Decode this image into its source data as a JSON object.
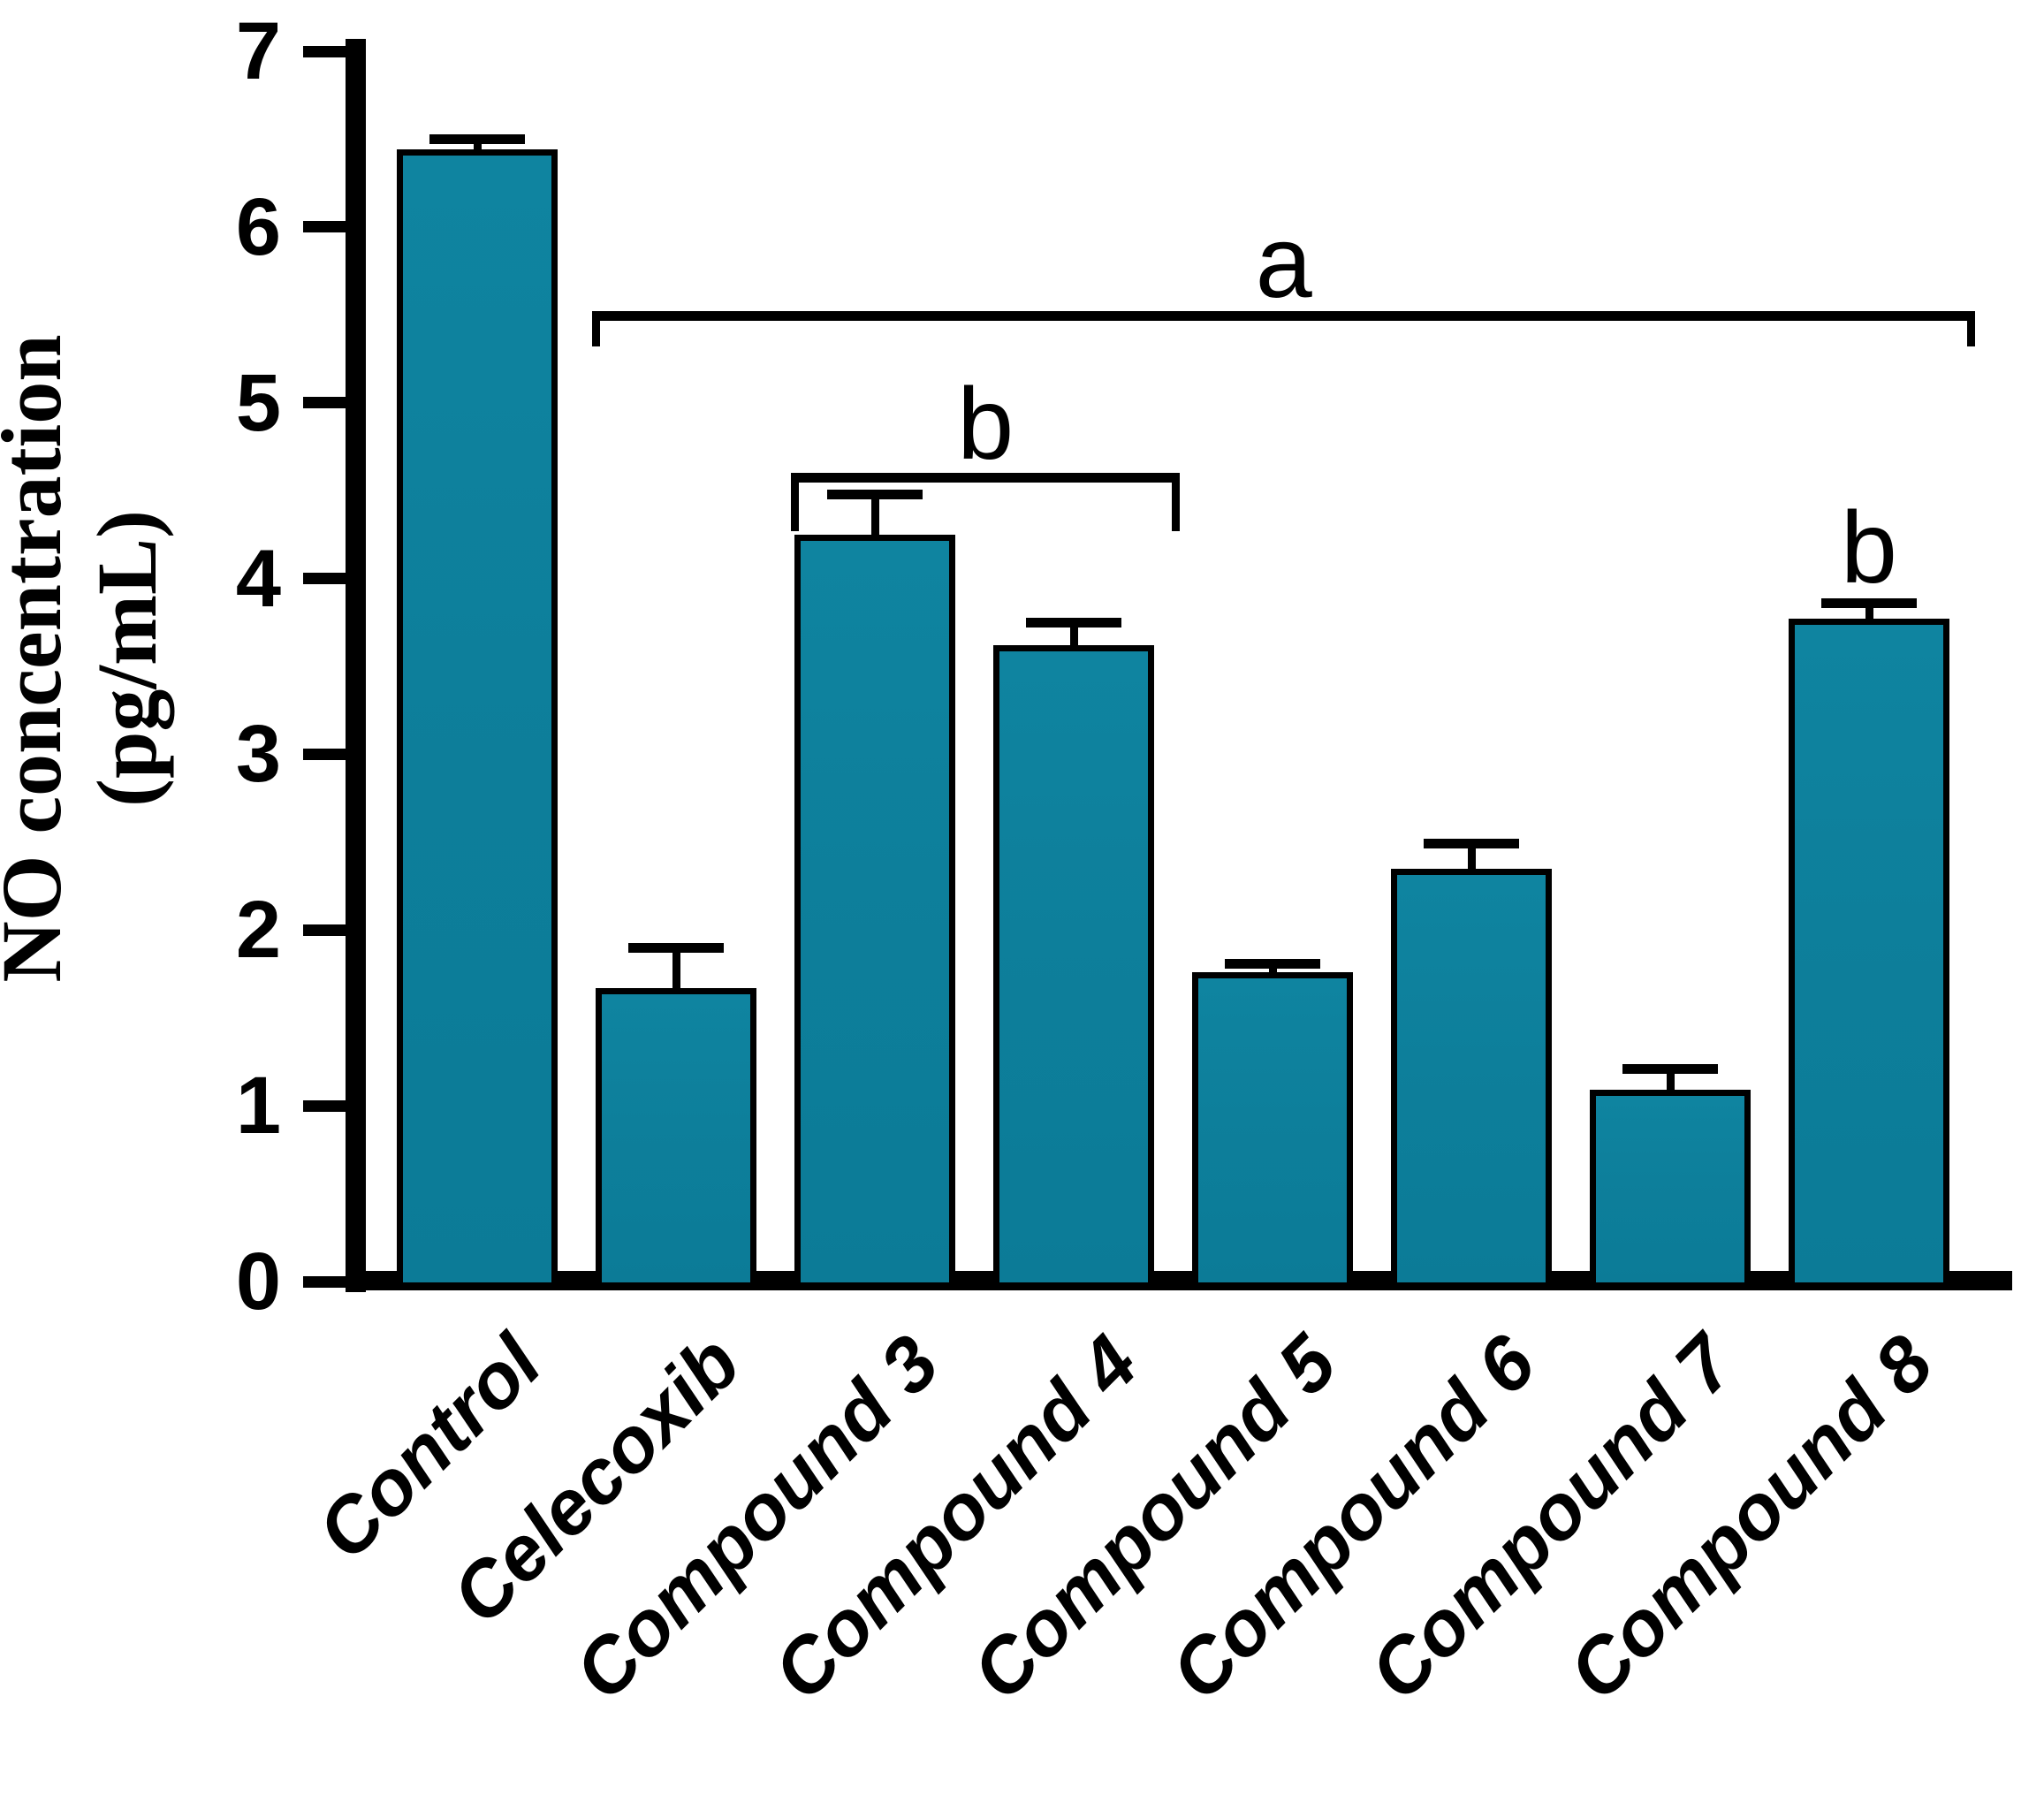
{
  "figure": {
    "background_color": "#ffffff",
    "bar_fill_color": "#0d7f9b",
    "axis_color": "#000000"
  },
  "chart_data": {
    "type": "bar",
    "title": "",
    "ylabel_line1": "NO concentration",
    "ylabel_line2": "(pg/mL)",
    "xlabel": "",
    "ylim": [
      0,
      7
    ],
    "ytick_labels": [
      "0",
      "1",
      "2",
      "3",
      "4",
      "5",
      "6",
      "7"
    ],
    "grid": false,
    "legend": "none",
    "categories": [
      "Control",
      "Celecoxib",
      "Compound 3",
      "Compound 4",
      "Compound 5",
      "Compound 6",
      "Compound 7",
      "Compound 8"
    ],
    "series": [
      {
        "name": "NO concentration (pg/mL)",
        "values": [
          6.44,
          1.67,
          4.25,
          3.62,
          1.76,
          2.35,
          1.09,
          3.77
        ],
        "errors_plus": [
          0.06,
          0.23,
          0.23,
          0.13,
          0.05,
          0.14,
          0.12,
          0.09
        ]
      }
    ],
    "annotations": [
      {
        "type": "bracket",
        "label": "a",
        "from_category": "Celecoxib",
        "to_category": "Compound 8",
        "y_value": 5.52,
        "drop_value": 0.2
      },
      {
        "type": "bracket",
        "label": "b",
        "from_category": "Compound 3",
        "to_category": "Compound 4",
        "y_value": 4.6,
        "drop_value": 0.33
      },
      {
        "type": "letter",
        "label": "b",
        "category": "Compound 8",
        "baseline_value": 4.0
      }
    ]
  }
}
